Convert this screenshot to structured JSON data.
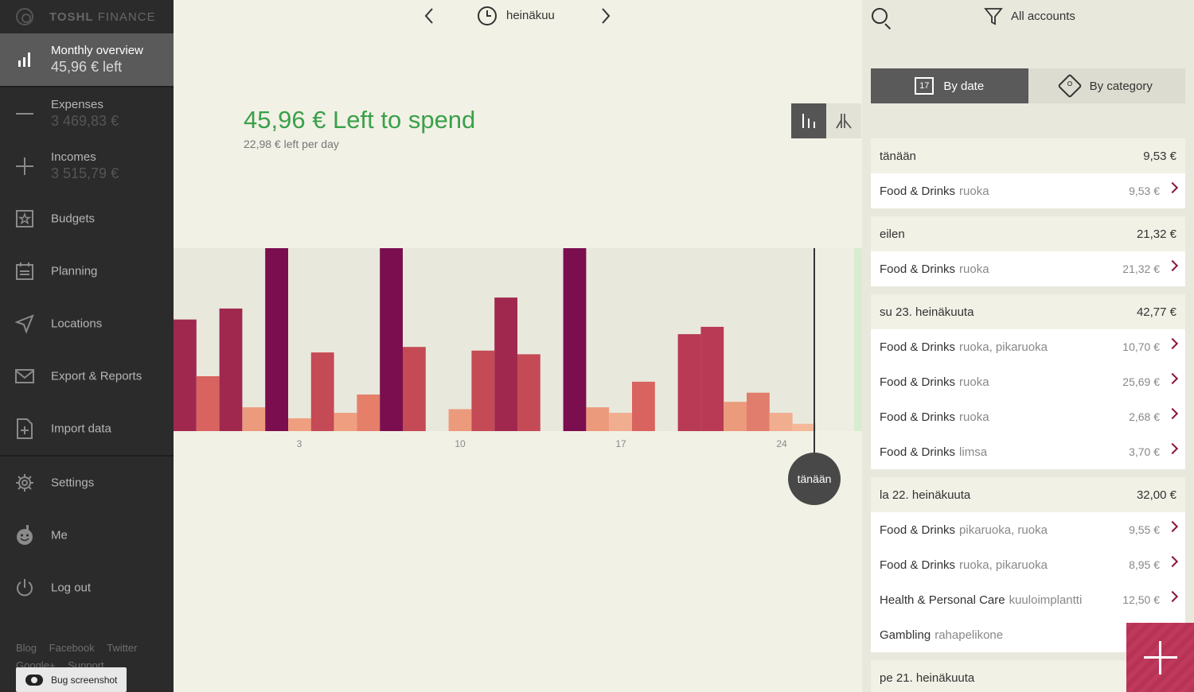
{
  "app": {
    "brand_bold": "TOSHL",
    "brand_light": "FINANCE"
  },
  "sidebar": {
    "items": [
      {
        "label": "Monthly overview",
        "value": "45,96 € left",
        "icon": "bar-chart-icon"
      },
      {
        "label": "Expenses",
        "value": "3 469,83 €",
        "icon": "minus-icon"
      },
      {
        "label": "Incomes",
        "value": "3 515,79 €",
        "icon": "plus-icon"
      },
      {
        "label": "Budgets",
        "icon": "budget-icon"
      },
      {
        "label": "Planning",
        "icon": "calendar-icon"
      },
      {
        "label": "Locations",
        "icon": "location-arrow-icon"
      },
      {
        "label": "Export & Reports",
        "icon": "envelope-icon"
      },
      {
        "label": "Import data",
        "icon": "import-file-icon"
      },
      {
        "label": "Settings",
        "icon": "gear-icon"
      },
      {
        "label": "Me",
        "icon": "smiley-icon"
      },
      {
        "label": "Log out",
        "icon": "power-icon"
      }
    ],
    "footer_links": [
      "Blog",
      "Facebook",
      "Twitter",
      "Google+",
      "Support"
    ],
    "bug_button": "Bug screenshot"
  },
  "main": {
    "month": "heinäkuu",
    "headline": "45,96 € Left to spend",
    "subline": "22,98 € left per day",
    "today_label": "tänään"
  },
  "chart_data": {
    "type": "bar",
    "x_ticks": [
      "3",
      "10",
      "17",
      "24"
    ],
    "bar_heights_relative": [
      0.61,
      0.3,
      0.67,
      0.13,
      1.0,
      0.07,
      0.43,
      0.1,
      0.2,
      1.0,
      0.46,
      0.0,
      0.12,
      0.44,
      0.73,
      0.42,
      0.0,
      1.0,
      0.13,
      0.1,
      0.27,
      0.0,
      0.53,
      0.57,
      0.16,
      0.21,
      0.1,
      0.04
    ],
    "bar_colors": [
      "#a0284f",
      "#d9635f",
      "#a0284f",
      "#ec9a7c",
      "#7a0e4f",
      "#ef9f80",
      "#c44a55",
      "#ef9f80",
      "#e57f6a",
      "#7a0e4f",
      "#c44a55",
      "#000000",
      "#ec9a7c",
      "#c44a55",
      "#a0284f",
      "#c44a55",
      "#000000",
      "#7a0e4f",
      "#ec9a7c",
      "#f1ad90",
      "#d9635f",
      "#000000",
      "#b83a54",
      "#b83a54",
      "#ec9a7c",
      "#e17d6c",
      "#f1ad90",
      "#f4b998"
    ],
    "colors": {
      "future_zone": "#d8ecd0"
    }
  },
  "right": {
    "filter_label": "All accounts",
    "tab_date": "By date",
    "tab_date_num": "17",
    "tab_category": "By category",
    "groups": [
      {
        "date": "tänään",
        "total": "9,53 €",
        "entries": [
          {
            "cat": "Food & Drinks",
            "tags": "ruoka",
            "amount": "9,53 €"
          }
        ]
      },
      {
        "date": "eilen",
        "total": "21,32 €",
        "entries": [
          {
            "cat": "Food & Drinks",
            "tags": "ruoka",
            "amount": "21,32 €"
          }
        ]
      },
      {
        "date": "su 23. heinäkuuta",
        "total": "42,77 €",
        "entries": [
          {
            "cat": "Food & Drinks",
            "tags": "ruoka, pikaruoka",
            "amount": "10,70 €"
          },
          {
            "cat": "Food & Drinks",
            "tags": "ruoka",
            "amount": "25,69 €"
          },
          {
            "cat": "Food & Drinks",
            "tags": "ruoka",
            "amount": "2,68 €"
          },
          {
            "cat": "Food & Drinks",
            "tags": "limsa",
            "amount": "3,70 €"
          }
        ]
      },
      {
        "date": "la 22. heinäkuuta",
        "total": "32,00 €",
        "entries": [
          {
            "cat": "Food & Drinks",
            "tags": "pikaruoka, ruoka",
            "amount": "9,55 €"
          },
          {
            "cat": "Food & Drinks",
            "tags": "ruoka, pikaruoka",
            "amount": "8,95 €"
          },
          {
            "cat": "Health & Personal Care",
            "tags": "kuuloimplantti",
            "amount": "12,50 €"
          },
          {
            "cat": "Gambling",
            "tags": "rahapelikone",
            "amount": ""
          }
        ]
      },
      {
        "date": "pe 21. heinäkuuta",
        "total": "",
        "entries": []
      }
    ]
  }
}
